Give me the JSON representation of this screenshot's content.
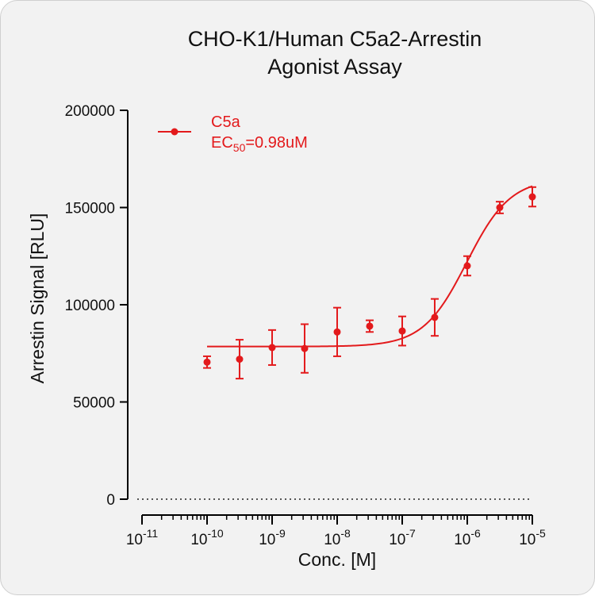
{
  "chart_data": {
    "type": "scatter",
    "title_lines": [
      "CHO-K1/Human C5a2-Arrestin",
      "Agonist Assay"
    ],
    "xlabel": "Conc. [M]",
    "ylabel": "Arrestin Signal [RLU]",
    "x_scale": "log",
    "xlim": [
      1e-11,
      1e-05
    ],
    "ylim": [
      0,
      200000
    ],
    "x_ticks": [
      {
        "base": "10",
        "exp": "-11"
      },
      {
        "base": "10",
        "exp": "-10"
      },
      {
        "base": "10",
        "exp": "-9"
      },
      {
        "base": "10",
        "exp": "-8"
      },
      {
        "base": "10",
        "exp": "-7"
      },
      {
        "base": "10",
        "exp": "-6"
      },
      {
        "base": "10",
        "exp": "-5"
      }
    ],
    "y_ticks": [
      "0",
      "50000",
      "100000",
      "150000",
      "200000"
    ],
    "zero_line": "dotted",
    "color": "#e31a1c",
    "legend_position": "top-left",
    "series": [
      {
        "name": "C5a",
        "annotation": {
          "prefix": "EC",
          "subscript": "50",
          "suffix": "=0.98uM"
        },
        "points": [
          {
            "x": 1e-10,
            "y": 70500,
            "err": 3000
          },
          {
            "x": 3.16e-10,
            "y": 72000,
            "err": 10000
          },
          {
            "x": 1e-09,
            "y": 78000,
            "err": 9000
          },
          {
            "x": 3.16e-09,
            "y": 77500,
            "err": 12500
          },
          {
            "x": 1e-08,
            "y": 86000,
            "err": 12500
          },
          {
            "x": 3.16e-08,
            "y": 89000,
            "err": 3000
          },
          {
            "x": 1e-07,
            "y": 86500,
            "err": 7500
          },
          {
            "x": 3.16e-07,
            "y": 93500,
            "err": 9500
          },
          {
            "x": 1e-06,
            "y": 120000,
            "err": 5000
          },
          {
            "x": 3.16e-06,
            "y": 150000,
            "err": 3000
          },
          {
            "x": 1e-05,
            "y": 155500,
            "err": 5000
          }
        ],
        "fit": {
          "model": "4PL",
          "bottom": 78500,
          "top": 165000,
          "ec50": 9.8e-07,
          "hill": 1.3
        }
      }
    ]
  }
}
